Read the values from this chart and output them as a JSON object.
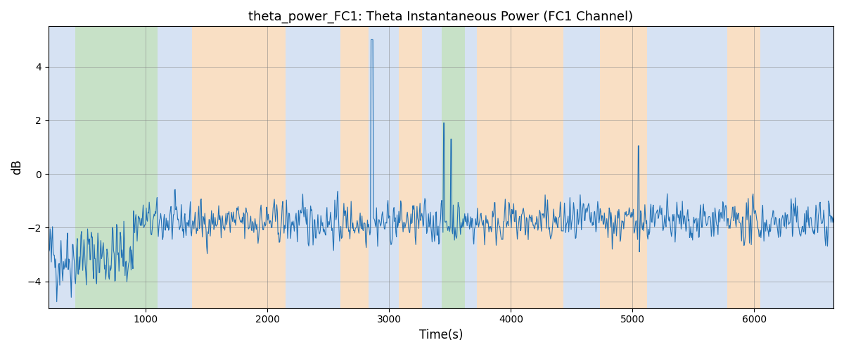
{
  "title": "theta_power_FC1: Theta Instantaneous Power (FC1 Channel)",
  "xlabel": "Time(s)",
  "ylabel": "dB",
  "xlim": [
    200,
    6650
  ],
  "ylim": [
    -5.0,
    5.5
  ],
  "yticks": [
    -4,
    -2,
    0,
    2,
    4
  ],
  "xticks": [
    1000,
    2000,
    3000,
    4000,
    5000,
    6000
  ],
  "line_color": "#2271b5",
  "line_width": 0.8,
  "figsize": [
    12,
    5
  ],
  "dpi": 100,
  "bands": [
    {
      "xmin": 200,
      "xmax": 420,
      "color": "#aec6e8",
      "alpha": 0.5
    },
    {
      "xmin": 420,
      "xmax": 1100,
      "color": "#90c490",
      "alpha": 0.5
    },
    {
      "xmin": 1100,
      "xmax": 1380,
      "color": "#aec6e8",
      "alpha": 0.5
    },
    {
      "xmin": 1380,
      "xmax": 2150,
      "color": "#f5c08a",
      "alpha": 0.5
    },
    {
      "xmin": 2150,
      "xmax": 2600,
      "color": "#aec6e8",
      "alpha": 0.5
    },
    {
      "xmin": 2600,
      "xmax": 2830,
      "color": "#f5c08a",
      "alpha": 0.5
    },
    {
      "xmin": 2830,
      "xmax": 3080,
      "color": "#aec6e8",
      "alpha": 0.5
    },
    {
      "xmin": 3080,
      "xmax": 3270,
      "color": "#f5c08a",
      "alpha": 0.5
    },
    {
      "xmin": 3270,
      "xmax": 3430,
      "color": "#aec6e8",
      "alpha": 0.5
    },
    {
      "xmin": 3430,
      "xmax": 3620,
      "color": "#90c490",
      "alpha": 0.5
    },
    {
      "xmin": 3620,
      "xmax": 3720,
      "color": "#aec6e8",
      "alpha": 0.5
    },
    {
      "xmin": 3720,
      "xmax": 4430,
      "color": "#f5c08a",
      "alpha": 0.5
    },
    {
      "xmin": 4430,
      "xmax": 4730,
      "color": "#aec6e8",
      "alpha": 0.5
    },
    {
      "xmin": 4730,
      "xmax": 5120,
      "color": "#f5c08a",
      "alpha": 0.5
    },
    {
      "xmin": 5120,
      "xmax": 5780,
      "color": "#aec6e8",
      "alpha": 0.5
    },
    {
      "xmin": 5780,
      "xmax": 6050,
      "color": "#f5c08a",
      "alpha": 0.5
    },
    {
      "xmin": 6050,
      "xmax": 6650,
      "color": "#aec6e8",
      "alpha": 0.5
    }
  ],
  "seed": 42,
  "n_samples": 1300,
  "t_start": 200,
  "t_end": 6650
}
